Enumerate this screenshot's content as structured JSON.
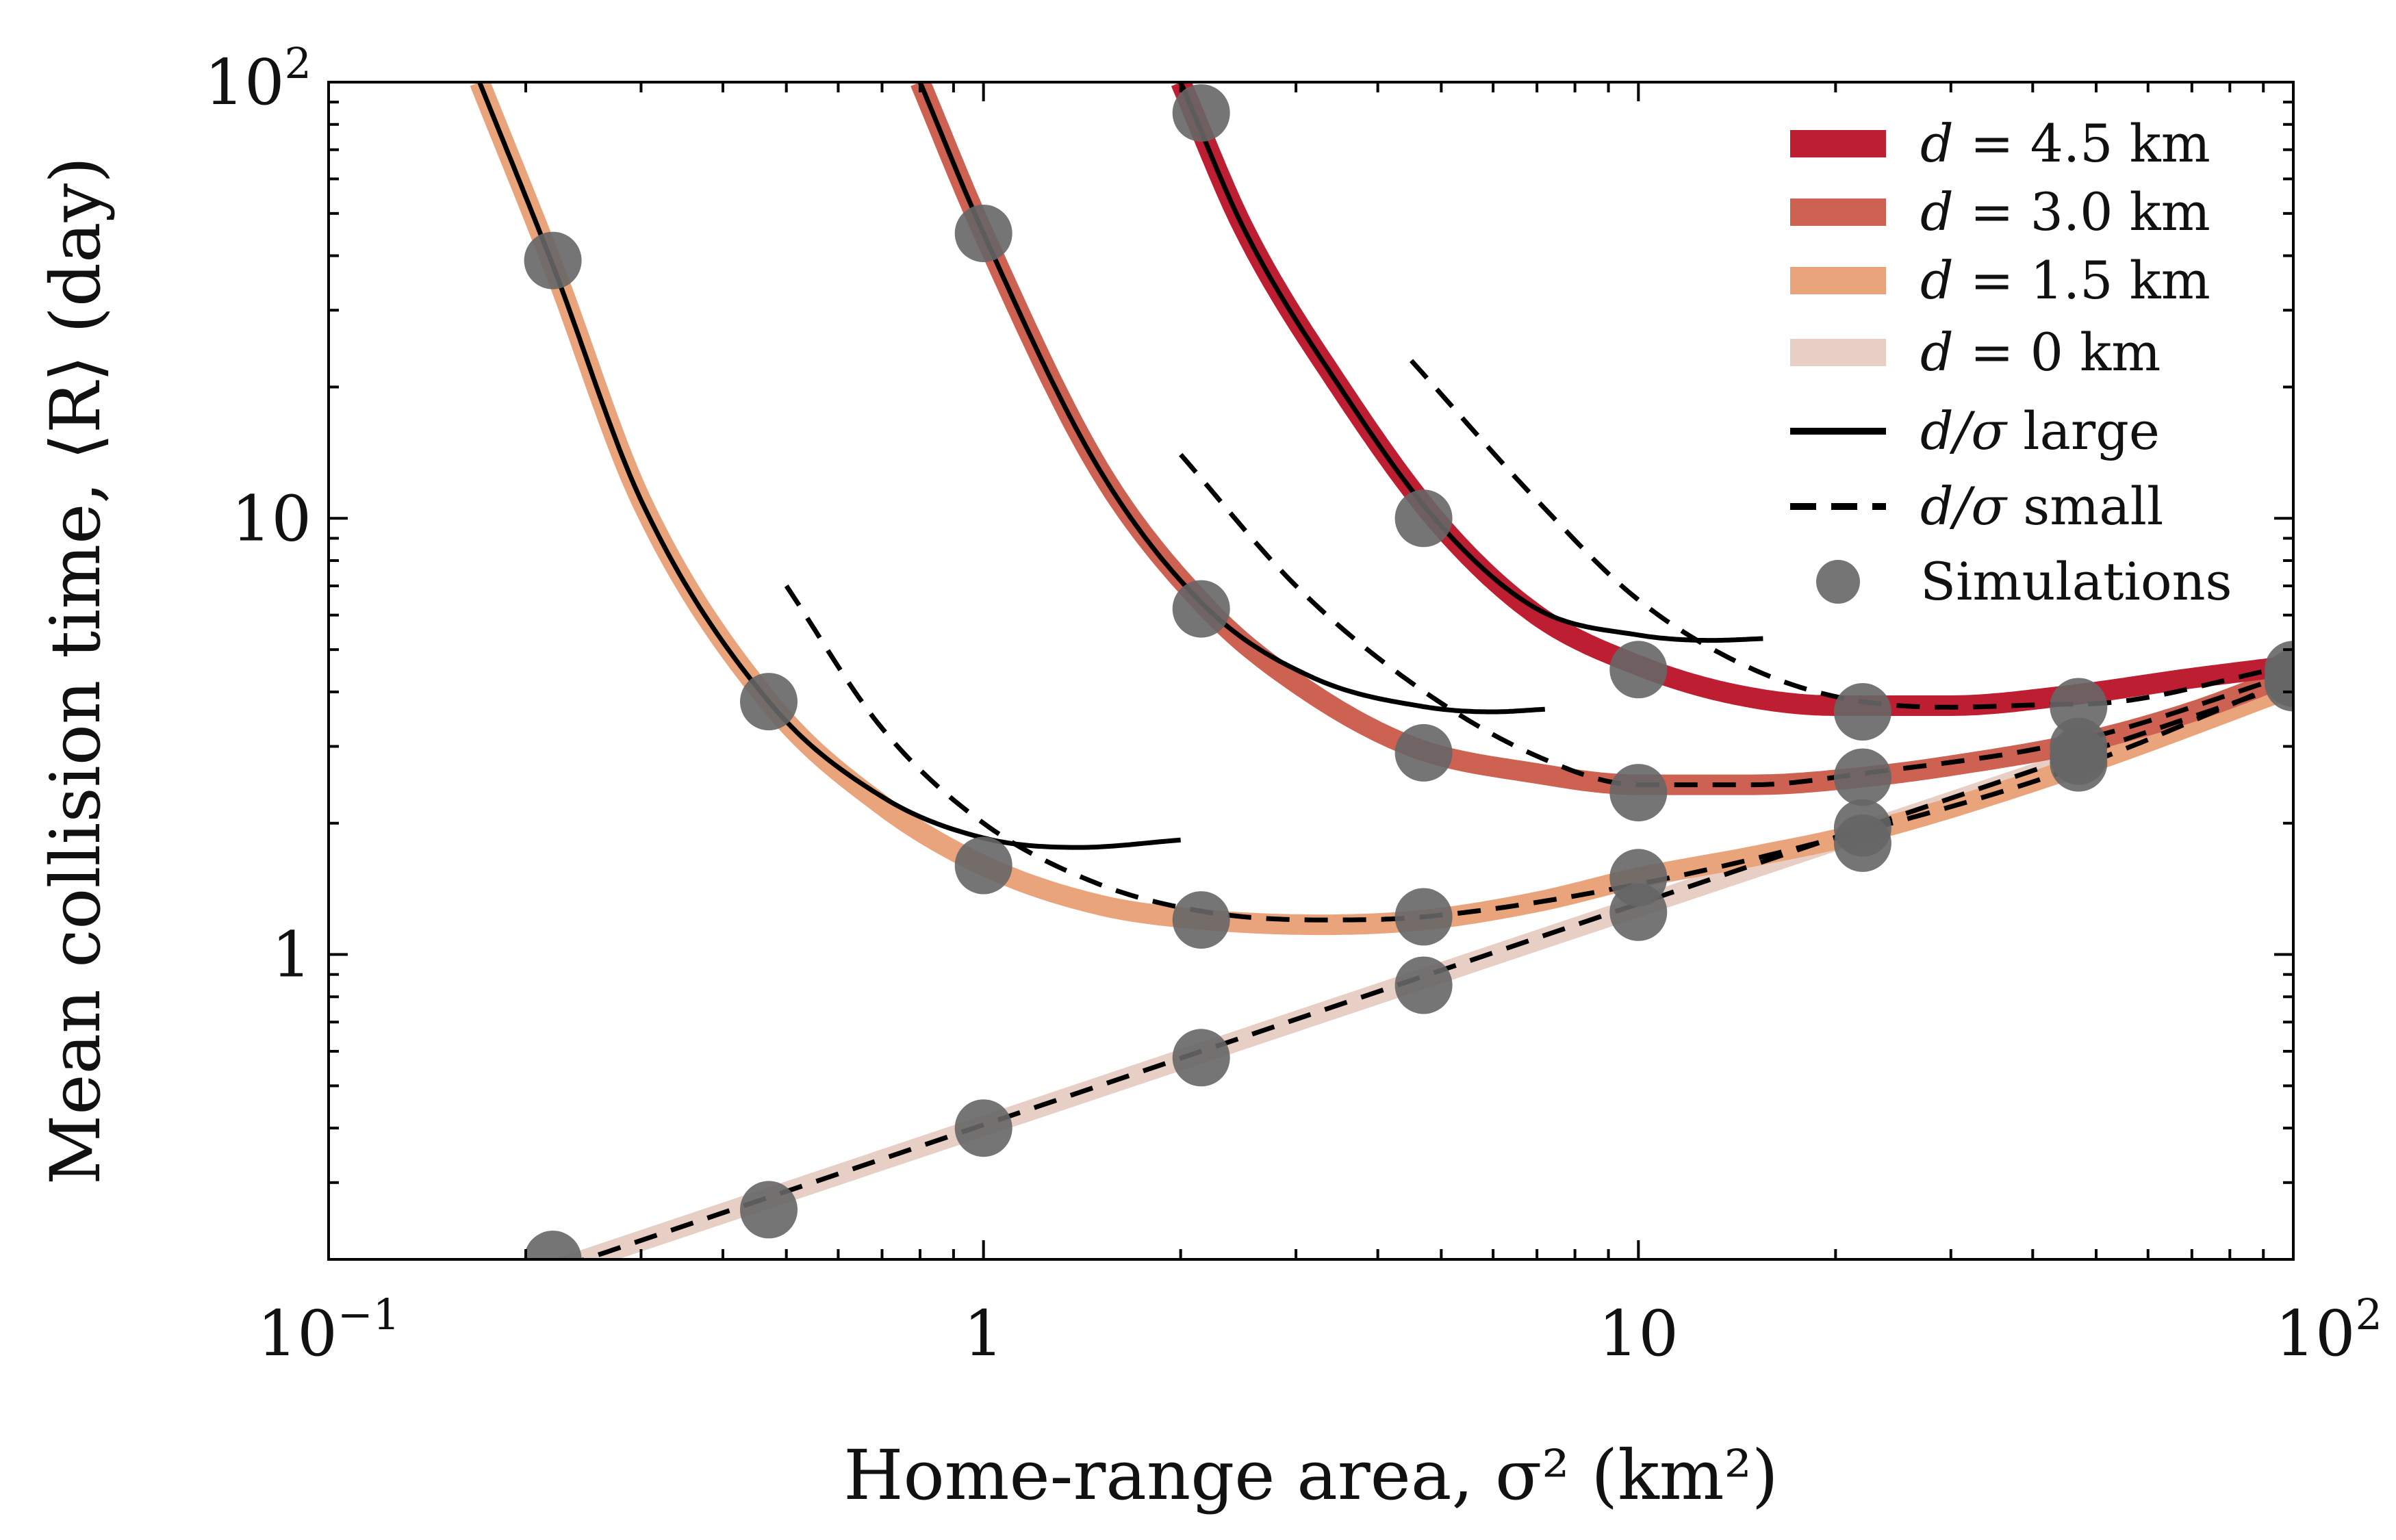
{
  "chart_data": {
    "type": "line",
    "xlabel": "Home-range area, σ² (km²)",
    "ylabel": "Mean collision time, ⟨R⟩ (day)",
    "xscale": "log",
    "yscale": "log",
    "xlim": [
      0.1,
      100
    ],
    "ylim": [
      0.2,
      100
    ],
    "x_ticks": [
      {
        "value": 0.1,
        "base": "10",
        "exp": "−1"
      },
      {
        "value": 1,
        "base": "1",
        "exp": ""
      },
      {
        "value": 10,
        "base": "10",
        "exp": ""
      },
      {
        "value": 100,
        "base": "10",
        "exp": "2"
      }
    ],
    "y_ticks": [
      {
        "value": 1,
        "base": "1",
        "exp": ""
      },
      {
        "value": 10,
        "base": "10",
        "exp": ""
      },
      {
        "value": 100,
        "base": "10",
        "exp": "2"
      }
    ],
    "grid": false,
    "legend_position": "top-right",
    "series": [
      {
        "name": "d = 4.5 km",
        "style": "band",
        "color": "#be1e32",
        "x": [
          2.0,
          2.5,
          3.5,
          5,
          7,
          10,
          14,
          20,
          30,
          45,
          70,
          100
        ],
        "y": [
          100,
          46,
          20,
          9.6,
          6.0,
          4.6,
          3.95,
          3.72,
          3.72,
          3.92,
          4.3,
          4.6
        ]
      },
      {
        "name": "d = 3.0 km",
        "style": "band",
        "color": "#cd6253",
        "x": [
          0.8,
          1.0,
          1.5,
          2.2,
          3,
          4.5,
          7,
          10,
          15,
          22,
          32,
          47,
          70,
          100
        ],
        "y": [
          100,
          45,
          13,
          6.2,
          4.2,
          3.0,
          2.6,
          2.45,
          2.45,
          2.55,
          2.75,
          3.05,
          3.6,
          4.4
        ]
      },
      {
        "name": "d = 1.5 km",
        "style": "band",
        "color": "#eaa47c",
        "x": [
          0.17,
          0.22,
          0.3,
          0.47,
          0.7,
          1.0,
          1.5,
          2.2,
          3.3,
          4.7,
          7,
          10,
          15,
          22,
          47,
          100
        ],
        "y": [
          100,
          38,
          11,
          3.8,
          2.2,
          1.6,
          1.3,
          1.2,
          1.17,
          1.2,
          1.32,
          1.5,
          1.68,
          1.9,
          2.7,
          4.1
        ]
      },
      {
        "name": "d = 0 km",
        "style": "band",
        "color": "#e8cfc6",
        "x": [
          0.2,
          100
        ],
        "y": [
          0.18,
          4.1
        ]
      },
      {
        "name": "d/σ large",
        "style": "solid",
        "color": "#000000",
        "curves": [
          {
            "x": [
              0.17,
              0.22,
              0.3,
              0.47,
              0.7,
              1.0,
              1.4,
              2.0
            ],
            "y": [
              100,
              38,
              11,
              3.8,
              2.3,
              1.85,
              1.76,
              1.83
            ]
          },
          {
            "x": [
              0.8,
              1.0,
              1.5,
              2.2,
              3.2,
              4.7,
              6.0,
              7.2
            ],
            "y": [
              100,
              45,
              13,
              6.2,
              4.3,
              3.7,
              3.6,
              3.65
            ]
          },
          {
            "x": [
              2.0,
              2.5,
              3.5,
              5,
              7,
              10,
              13,
              15.5
            ],
            "y": [
              100,
              46,
              20,
              9.6,
              6.2,
              5.4,
              5.25,
              5.3
            ]
          }
        ]
      },
      {
        "name": "d/σ small",
        "style": "dashed",
        "color": "#000000",
        "curves": [
          {
            "x": [
              0.5,
              0.7,
              1.0,
              1.5,
              2.2,
              3.3,
              4.7,
              10,
              22,
              47,
              100
            ],
            "y": [
              7.0,
              3.3,
              2.0,
              1.45,
              1.25,
              1.2,
              1.22,
              1.45,
              1.92,
              2.7,
              4.3
            ]
          },
          {
            "x": [
              2.0,
              3,
              4.5,
              7,
              10,
              15,
              22,
              47,
              100
            ],
            "y": [
              14,
              7,
              4.2,
              2.85,
              2.45,
              2.45,
              2.6,
              3.1,
              4.4
            ]
          },
          {
            "x": [
              4.5,
              7,
              10,
              15,
              22,
              47,
              100
            ],
            "y": [
              23,
              11,
              6.5,
              4.5,
              3.8,
              3.75,
              4.6
            ]
          },
          {
            "x": [
              0.2,
              100
            ],
            "y": [
              0.18,
              4.2
            ]
          }
        ]
      },
      {
        "name": "Simulations",
        "style": "markers",
        "color": "#666666",
        "x": [
          2.15,
          1.0,
          0.22,
          4.7,
          2.15,
          10,
          0.47,
          4.7,
          22,
          10,
          22,
          1.0,
          47,
          2.15,
          22,
          4.7,
          10,
          47,
          100,
          10,
          22,
          47,
          4.7,
          2.15,
          1.0,
          0.47,
          0.22,
          100,
          100,
          47
        ],
        "y": [
          85,
          45,
          39,
          10,
          6.2,
          4.5,
          3.8,
          2.9,
          3.6,
          2.35,
          2.55,
          1.6,
          3.7,
          1.2,
          1.95,
          1.22,
          1.5,
          3.0,
          4.5,
          1.25,
          1.8,
          2.75,
          0.85,
          0.58,
          0.4,
          0.26,
          0.2,
          4.2,
          4.3,
          2.85
        ]
      }
    ],
    "legend": [
      {
        "prefix": "d",
        "rest": " = 4.5 km",
        "style": "band",
        "color": "#be1e32"
      },
      {
        "prefix": "d",
        "rest": " = 3.0 km",
        "style": "band",
        "color": "#cd6253"
      },
      {
        "prefix": "d",
        "rest": " = 1.5 km",
        "style": "band",
        "color": "#eaa47c"
      },
      {
        "prefix": "d",
        "rest": " = 0 km",
        "style": "band",
        "color": "#e8cfc6"
      },
      {
        "prefix": "d/σ",
        "rest": " large",
        "style": "solid",
        "color": "#000000"
      },
      {
        "prefix": "d/σ",
        "rest": " small",
        "style": "dashed",
        "color": "#000000"
      },
      {
        "prefix": "",
        "rest": "Simulations",
        "style": "markers",
        "color": "#666666"
      }
    ]
  }
}
